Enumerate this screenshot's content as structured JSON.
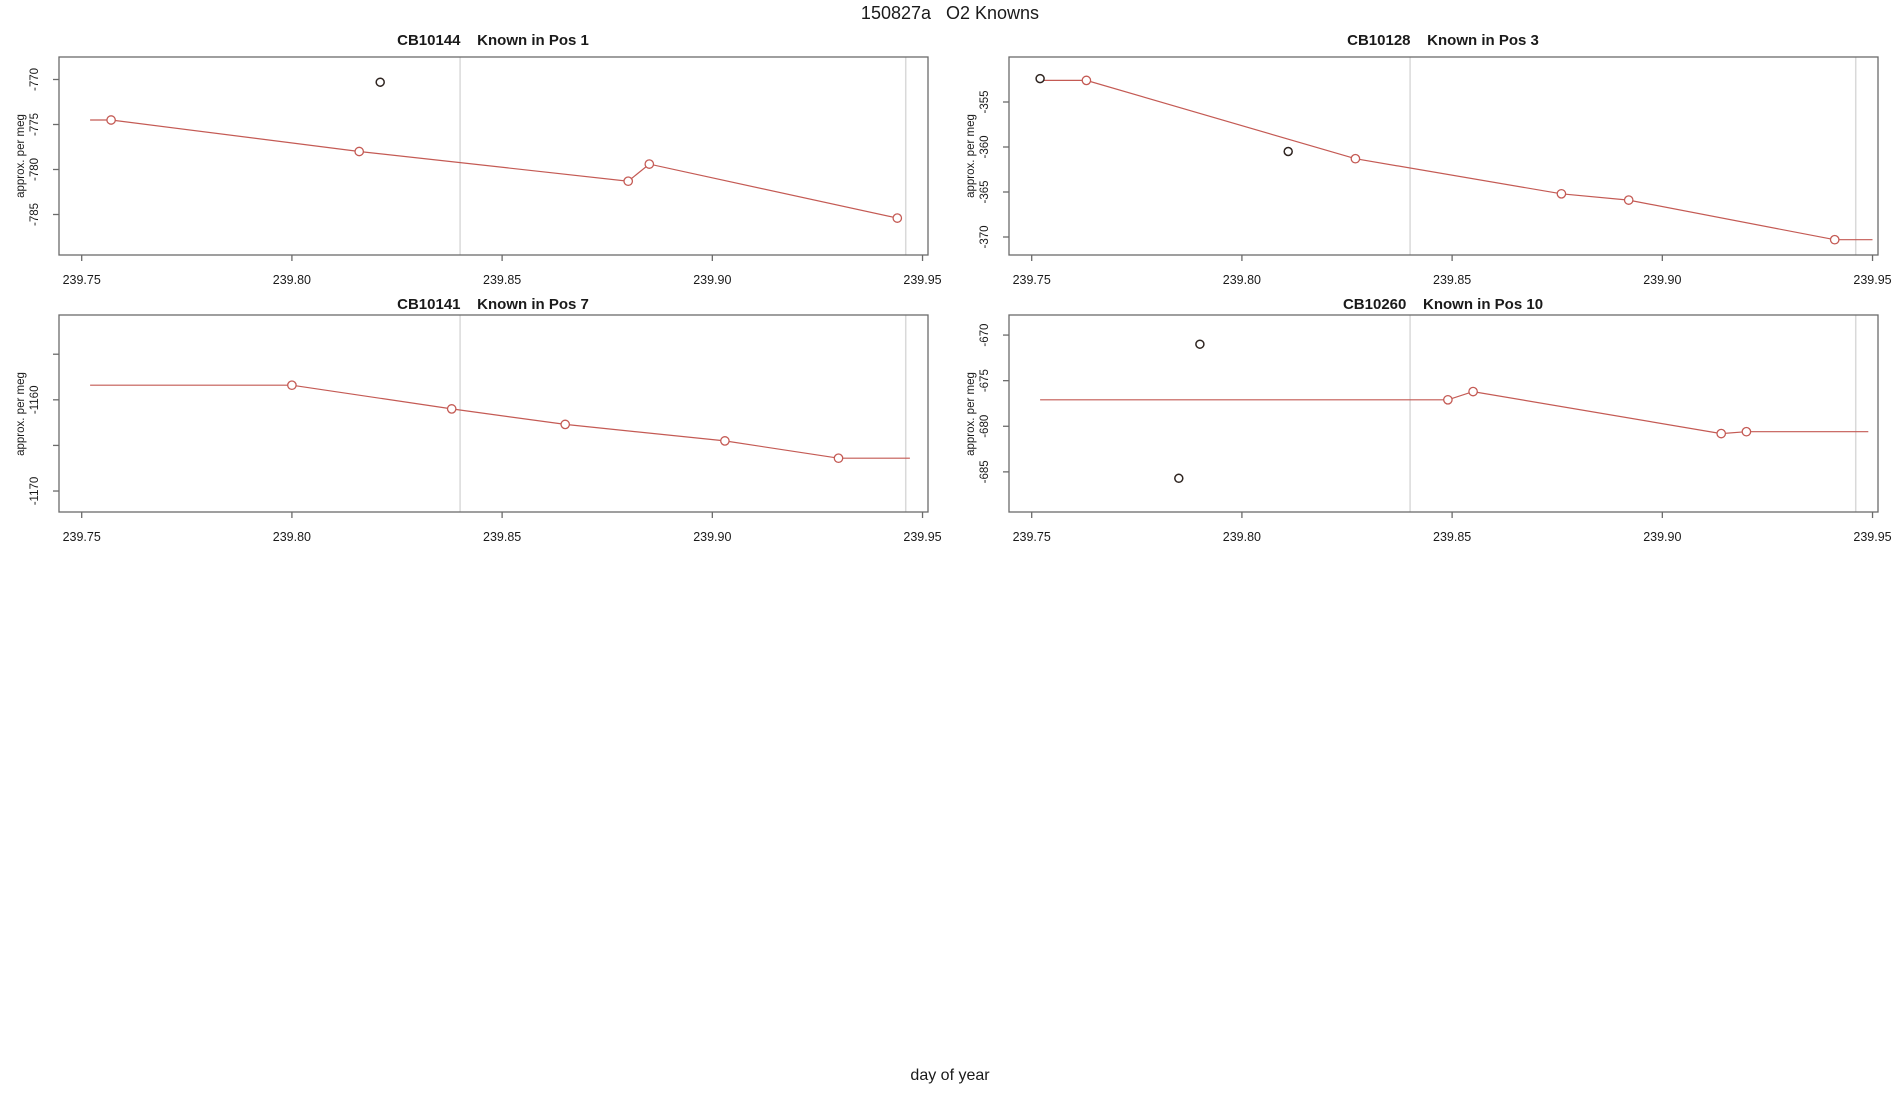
{
  "main_title": "150827a   O2 Knowns",
  "x_axis": {
    "label": "day of year",
    "xlim": [
      239.7446,
      239.9513
    ],
    "tick_values": [
      239.75,
      239.8,
      239.85,
      239.9,
      239.95
    ],
    "tick_labels": [
      "239.75",
      "239.80",
      "239.85",
      "239.90",
      "239.95"
    ]
  },
  "colors": {
    "line": "#c45a54",
    "outlier": "#2e2420",
    "grid": "#d9d9d9",
    "axis": "#6b6b6b",
    "text": "#1a1a1a",
    "background": "#ffffff"
  },
  "chart_data": [
    {
      "type": "line",
      "title": "CB10144    Known in Pos 1",
      "ylabel": "approx. per meg",
      "ylim": [
        -789.5,
        -767.5
      ],
      "yticks": [
        {
          "v": -770,
          "label": "-770"
        },
        {
          "v": -775,
          "label": "-775"
        },
        {
          "v": -780,
          "label": "-780"
        },
        {
          "v": -785,
          "label": "-785"
        }
      ],
      "gridlines_x": [
        239.84,
        239.946
      ],
      "line": [
        [
          239.752,
          -774.5
        ],
        [
          239.757,
          -774.5
        ],
        [
          239.816,
          -778.0
        ],
        [
          239.88,
          -781.3
        ],
        [
          239.885,
          -779.4
        ],
        [
          239.944,
          -785.4
        ]
      ],
      "markers": [
        [
          239.757,
          -774.5
        ],
        [
          239.816,
          -778.0
        ],
        [
          239.88,
          -781.3
        ],
        [
          239.885,
          -779.4
        ],
        [
          239.944,
          -785.4
        ]
      ],
      "outliers": [
        [
          239.821,
          -770.3
        ]
      ]
    },
    {
      "type": "line",
      "title": "CB10128    Known in Pos 3",
      "ylabel": "approx. per meg",
      "ylim": [
        -372.0,
        -350.0
      ],
      "yticks": [
        {
          "v": -355,
          "label": "-355"
        },
        {
          "v": -360,
          "label": "-360"
        },
        {
          "v": -365,
          "label": "-365"
        },
        {
          "v": -370,
          "label": "-370"
        }
      ],
      "gridlines_x": [
        239.84,
        239.946
      ],
      "line": [
        [
          239.752,
          -352.6
        ],
        [
          239.763,
          -352.6
        ],
        [
          239.827,
          -361.3
        ],
        [
          239.876,
          -365.2
        ],
        [
          239.892,
          -365.9
        ],
        [
          239.941,
          -370.3
        ],
        [
          239.95,
          -370.3
        ]
      ],
      "markers": [
        [
          239.763,
          -352.6
        ],
        [
          239.827,
          -361.3
        ],
        [
          239.876,
          -365.2
        ],
        [
          239.892,
          -365.9
        ],
        [
          239.941,
          -370.3
        ]
      ],
      "outliers": [
        [
          239.752,
          -352.4
        ],
        [
          239.811,
          -360.5
        ]
      ]
    },
    {
      "type": "line",
      "title": "CB10141    Known in Pos 7",
      "ylabel": "approx. per meg",
      "ylim": [
        -1172.3,
        -1150.7
      ],
      "yticks": [
        {
          "v": -1155,
          "label": ""
        },
        {
          "v": -1160,
          "label": "-1160"
        },
        {
          "v": -1165,
          "label": ""
        },
        {
          "v": -1170,
          "label": "-1170"
        }
      ],
      "gridlines_x": [
        239.84,
        239.946
      ],
      "line": [
        [
          239.752,
          -1158.4
        ],
        [
          239.8,
          -1158.4
        ],
        [
          239.838,
          -1161.0
        ],
        [
          239.865,
          -1162.7
        ],
        [
          239.903,
          -1164.5
        ],
        [
          239.93,
          -1166.4
        ],
        [
          239.947,
          -1166.4
        ]
      ],
      "markers": [
        [
          239.8,
          -1158.4
        ],
        [
          239.838,
          -1161.0
        ],
        [
          239.865,
          -1162.7
        ],
        [
          239.903,
          -1164.5
        ],
        [
          239.93,
          -1166.4
        ]
      ],
      "outliers": []
    },
    {
      "type": "line",
      "title": "CB10260    Known in Pos 10",
      "ylabel": "approx. per meg",
      "ylim": [
        -689.4,
        -667.8
      ],
      "yticks": [
        {
          "v": -670,
          "label": "-670"
        },
        {
          "v": -675,
          "label": "-675"
        },
        {
          "v": -680,
          "label": "-680"
        },
        {
          "v": -685,
          "label": "-685"
        }
      ],
      "gridlines_x": [
        239.84,
        239.946
      ],
      "line": [
        [
          239.752,
          -677.1
        ],
        [
          239.849,
          -677.1
        ],
        [
          239.855,
          -676.2
        ],
        [
          239.914,
          -680.8
        ],
        [
          239.92,
          -680.6
        ],
        [
          239.949,
          -680.6
        ]
      ],
      "markers": [
        [
          239.849,
          -677.1
        ],
        [
          239.855,
          -676.2
        ],
        [
          239.914,
          -680.8
        ],
        [
          239.92,
          -680.6
        ]
      ],
      "outliers": [
        [
          239.79,
          -671.0
        ],
        [
          239.785,
          -685.7
        ]
      ]
    }
  ]
}
